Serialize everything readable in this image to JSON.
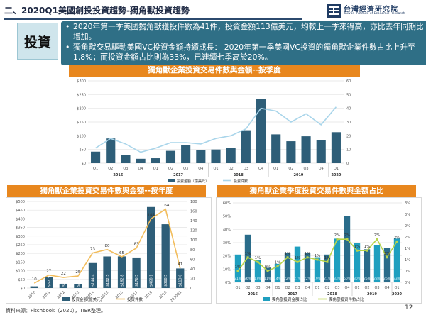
{
  "header": {
    "title": "二、2020Q1美國創投投資趨勢-獨角獸投資趨勢",
    "logo_cn": "台灣經濟研究院",
    "logo_en": "Taiwan Institute of Economic Research"
  },
  "summary": {
    "tag": "投資",
    "bullets": [
      "2020年第一季美國獨角獸獲投件數為41件，投資金額113億美元，均較上一季來得高，亦比去年同期比增加。",
      "獨角獸交易驅動美國VC投資金額持續成長： 2020年第一季美國VC投資的獨角獸企業件數占比上升至1.8%；而投資金額占比則為33%，已連續七季高於20%。"
    ]
  },
  "footer": {
    "source": "資料來源：Pitchbook（2020），TIER整理。",
    "page": "12"
  },
  "colors": {
    "bar": "#2e5e78",
    "line": "#f2bd5c",
    "bar_cyan": "#1f9fbf",
    "bar_cyan_dark": "#2a6c8a",
    "line_green": "#b8d44a"
  },
  "chart_data": [
    {
      "type": "bar",
      "title": "獨角獸企業投資交易件數與金額--按季度",
      "quarters": [
        "Q1",
        "Q2",
        "Q3",
        "Q4",
        "Q1",
        "Q2",
        "Q3",
        "Q4",
        "Q1",
        "Q2",
        "Q3",
        "Q4",
        "Q1",
        "Q2",
        "Q3",
        "Q4",
        "Q1"
      ],
      "years": [
        {
          "label": "2016",
          "start": 0,
          "end": 3
        },
        {
          "label": "2017",
          "start": 4,
          "end": 7
        },
        {
          "label": "2018",
          "start": 8,
          "end": 11
        },
        {
          "label": "2019",
          "start": 12,
          "end": 15
        },
        {
          "label": "2020",
          "start": 16,
          "end": 16
        }
      ],
      "series": [
        {
          "name": "投資金額（億美元）",
          "axis": "left",
          "type": "bar",
          "values": [
            42,
            90,
            30,
            16,
            18,
            45,
            65,
            48,
            50,
            55,
            120,
            235,
            105,
            80,
            98,
            85,
            113
          ]
        },
        {
          "name": "投資件數",
          "axis": "right",
          "type": "line",
          "values": [
            11,
            18,
            14,
            8,
            11,
            15,
            15,
            14,
            18,
            20,
            25,
            40,
            38,
            30,
            36,
            28,
            41
          ]
        }
      ],
      "y_left": {
        "ticks": [
          "$0",
          "$50",
          "$100",
          "$150",
          "$200",
          "$250",
          "$300"
        ],
        "max": 300
      },
      "y_right": {
        "ticks": [
          "0",
          "10",
          "20",
          "30",
          "40",
          "50",
          "60"
        ],
        "max": 60
      },
      "legend": [
        "投資金額（億美元）",
        "投資件數"
      ]
    },
    {
      "type": "bar",
      "title": "獨角獸企業投資交易件數與金額--按年度",
      "categories": [
        "2010",
        "2011",
        "2012",
        "2013",
        "2014",
        "2015",
        "2016",
        "2017",
        "2018",
        "2019",
        "2020Q1"
      ],
      "series": [
        {
          "name": "投資金額(億美元)",
          "axis": "left",
          "type": "bar",
          "values": [
            10.0,
            62.3,
            24.8,
            23.6,
            144.4,
            182.5,
            182.8,
            176.5,
            468.1,
            368.5,
            113.0
          ],
          "labels": [
            "$10.0",
            "$62.3",
            "$24.8",
            "$23.6",
            "$144.4",
            "$182.5",
            "$182.8",
            "$176.5",
            "$468.1",
            "$368.5",
            "$113.0"
          ]
        },
        {
          "name": "投資件數",
          "axis": "right",
          "type": "line",
          "values": [
            10,
            27,
            22,
            25,
            73,
            80,
            65,
            83,
            144,
            164,
            41
          ]
        }
      ],
      "y_left": {
        "ticks": [
          "$0",
          "$50",
          "$100",
          "$150",
          "$200",
          "$250",
          "$300",
          "$350",
          "$400",
          "$450",
          "$500"
        ],
        "max": 500
      },
      "y_right": {
        "ticks": [
          "0",
          "20",
          "40",
          "60",
          "80",
          "100",
          "120",
          "140",
          "160",
          "180"
        ],
        "max": 180
      },
      "legend": [
        "投資金額(億美元)",
        "投資件數"
      ]
    },
    {
      "type": "bar",
      "title": "獨角獸企業季度投資交易件數與金額占比",
      "quarters": [
        "Q1",
        "Q2",
        "Q3",
        "Q4",
        "Q1",
        "Q2",
        "Q3",
        "Q4",
        "Q1",
        "Q2",
        "Q3",
        "Q4",
        "Q1",
        "Q2",
        "Q3",
        "Q4",
        "Q1"
      ],
      "years": [
        {
          "label": "2016",
          "start": 0,
          "end": 3
        },
        {
          "label": "2017",
          "start": 4,
          "end": 7
        },
        {
          "label": "2018",
          "start": 8,
          "end": 11
        },
        {
          "label": "2019",
          "start": 12,
          "end": 15
        },
        {
          "label": "2020",
          "start": 16,
          "end": 16
        }
      ],
      "series": [
        {
          "name": "獨角獸投資金額占比",
          "axis": "left",
          "type": "bar",
          "values": [
            21,
            36,
            17,
            11,
            14,
            22,
            27,
            22,
            19,
            21,
            33,
            50,
            30,
            25,
            28,
            26,
            33
          ],
          "labels": [
            "21%",
            "36%",
            "17%",
            "11%",
            "14%",
            "22%",
            "27%",
            "22%",
            "19%",
            "21%",
            "33%",
            "50%",
            "30%",
            "25%",
            "28%",
            "26%",
            "33%"
          ]
        },
        {
          "name": "獨角獸投資件數占比",
          "axis": "right",
          "type": "line",
          "values": [
            0.5,
            1.1,
            0.9,
            0.5,
            0.7,
            1.1,
            0.9,
            1.1,
            1.0,
            0.9,
            1.9,
            1.9,
            1.4,
            1.4,
            1.9,
            1.1,
            1.8
          ],
          "labels": [
            "1%",
            "1%",
            "1%",
            "0%",
            "1%",
            "1%",
            "1%",
            "1%",
            "1%",
            "1%",
            "2%",
            "2%",
            "1%",
            "1%",
            "2%",
            "1%",
            "2%"
          ]
        }
      ],
      "y_left": {
        "ticks": [
          "0%",
          "10%",
          "20%",
          "30%",
          "40%",
          "50%",
          "60%"
        ],
        "max": 60
      },
      "y_right": {
        "ticks": [
          "0%",
          "0%",
          "1%",
          "1%",
          "2%",
          "2%",
          "3%",
          "3%"
        ],
        "max": 3.5
      },
      "legend": [
        "獨角獸投資金額占比",
        "獨角獸投資件數占比"
      ]
    }
  ]
}
